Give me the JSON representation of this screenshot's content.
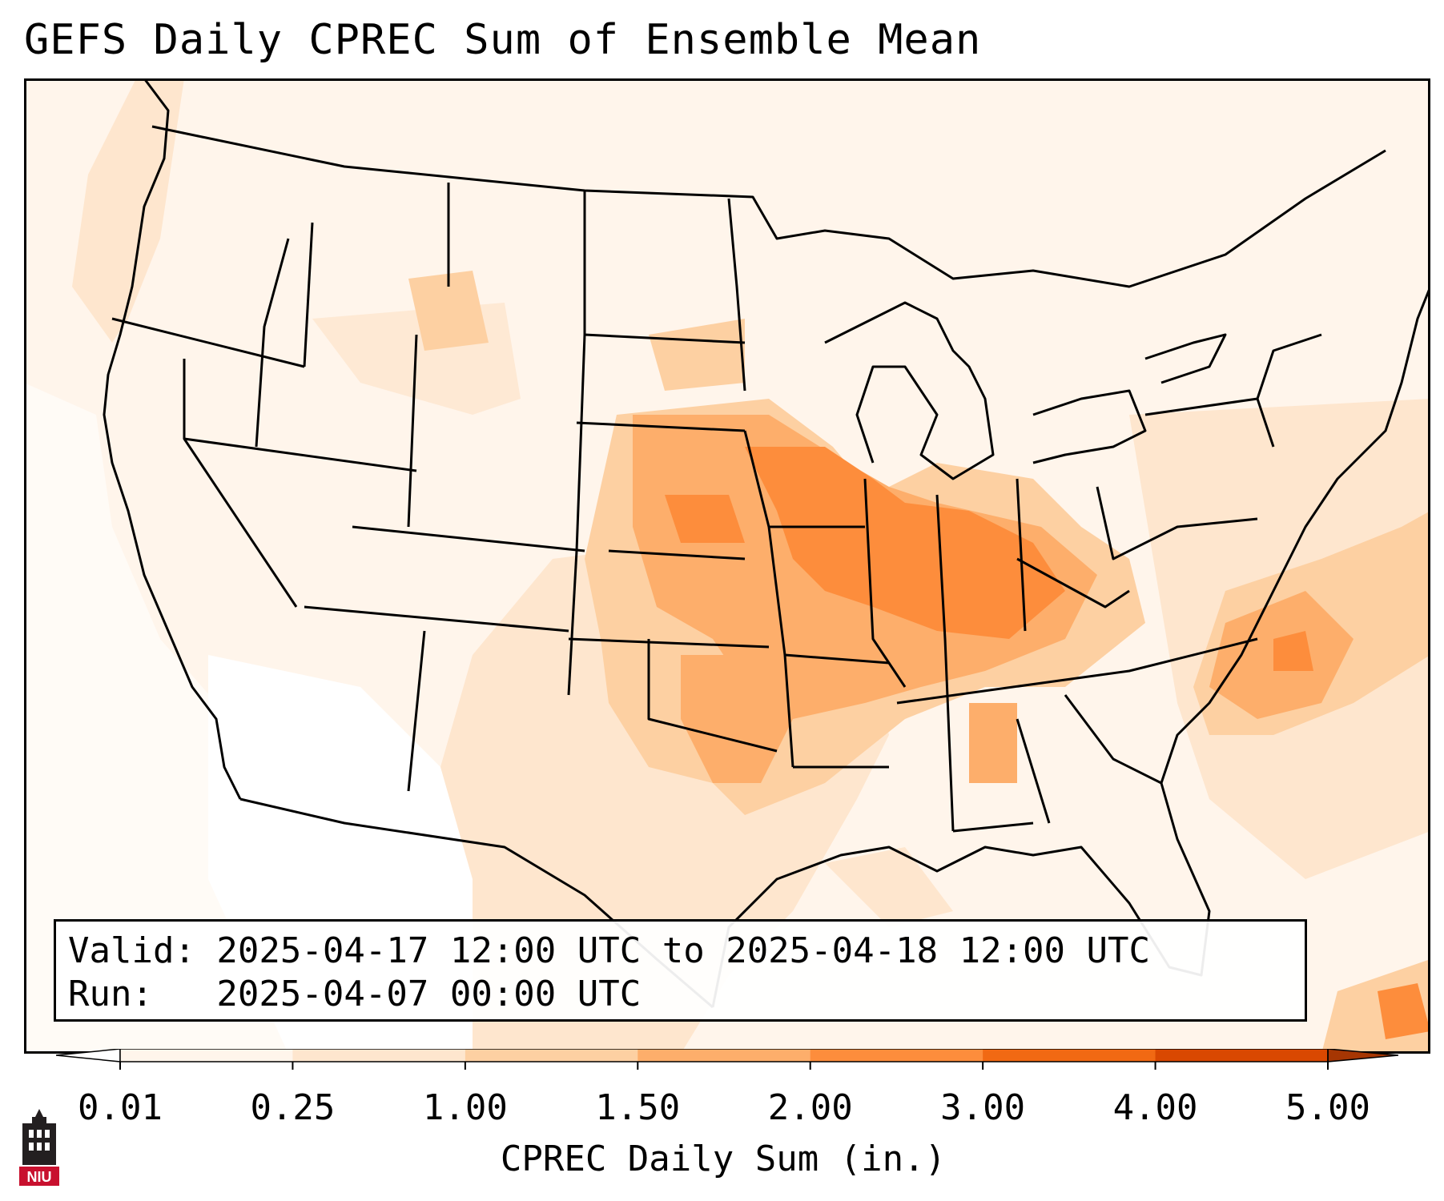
{
  "title": "GEFS Daily CPREC Sum of Ensemble Mean",
  "info": {
    "valid_line": "Valid: 2025-04-17 12:00 UTC to 2025-04-18 12:00 UTC",
    "run_line": "Run:   2025-04-07 00:00 UTC"
  },
  "colorbar": {
    "label": "CPREC Daily Sum (in.)",
    "ticks": [
      "0.01",
      "0.25",
      "1.00",
      "1.50",
      "2.00",
      "3.00",
      "4.00",
      "5.00"
    ],
    "colors": [
      "#fff5eb",
      "#fee6ce",
      "#fdd0a2",
      "#fdae6b",
      "#fd8d3c",
      "#f16913",
      "#d94801",
      "#a63603"
    ],
    "under_color": "#ffffff",
    "over_color": "#a63603"
  },
  "logo": {
    "text": "NIU"
  },
  "map": {
    "region": "Contiguous United States",
    "field": "precipitation shading",
    "land_outline_color": "#000000",
    "background_color": "#fff5eb"
  }
}
